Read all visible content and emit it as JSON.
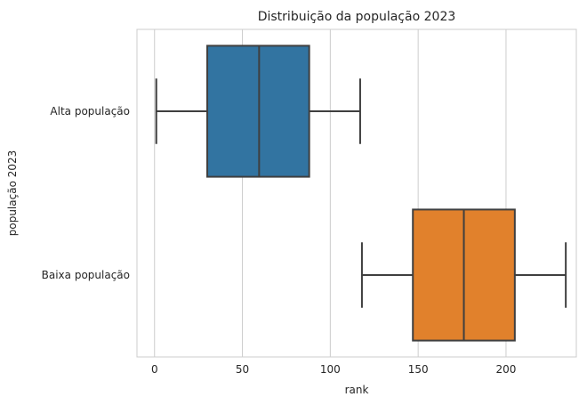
{
  "chart_data": {
    "type": "box",
    "orientation": "horizontal",
    "title": "Distribuição da população 2023",
    "xlabel": "rank",
    "ylabel": "população 2023",
    "xlim": [
      -10,
      240
    ],
    "xticks": [
      0,
      50,
      100,
      150,
      200
    ],
    "grid": "vertical",
    "categories": [
      "Alta população",
      "Baixa população"
    ],
    "boxes": [
      {
        "category": "Alta população",
        "whisker_low": 1,
        "q1": 30,
        "median": 59.5,
        "q3": 88,
        "whisker_high": 117,
        "color": "#3274a1"
      },
      {
        "category": "Baixa população",
        "whisker_low": 118,
        "q1": 147,
        "median": 176,
        "q3": 205,
        "whisker_high": 234,
        "color": "#e1812c"
      }
    ]
  }
}
